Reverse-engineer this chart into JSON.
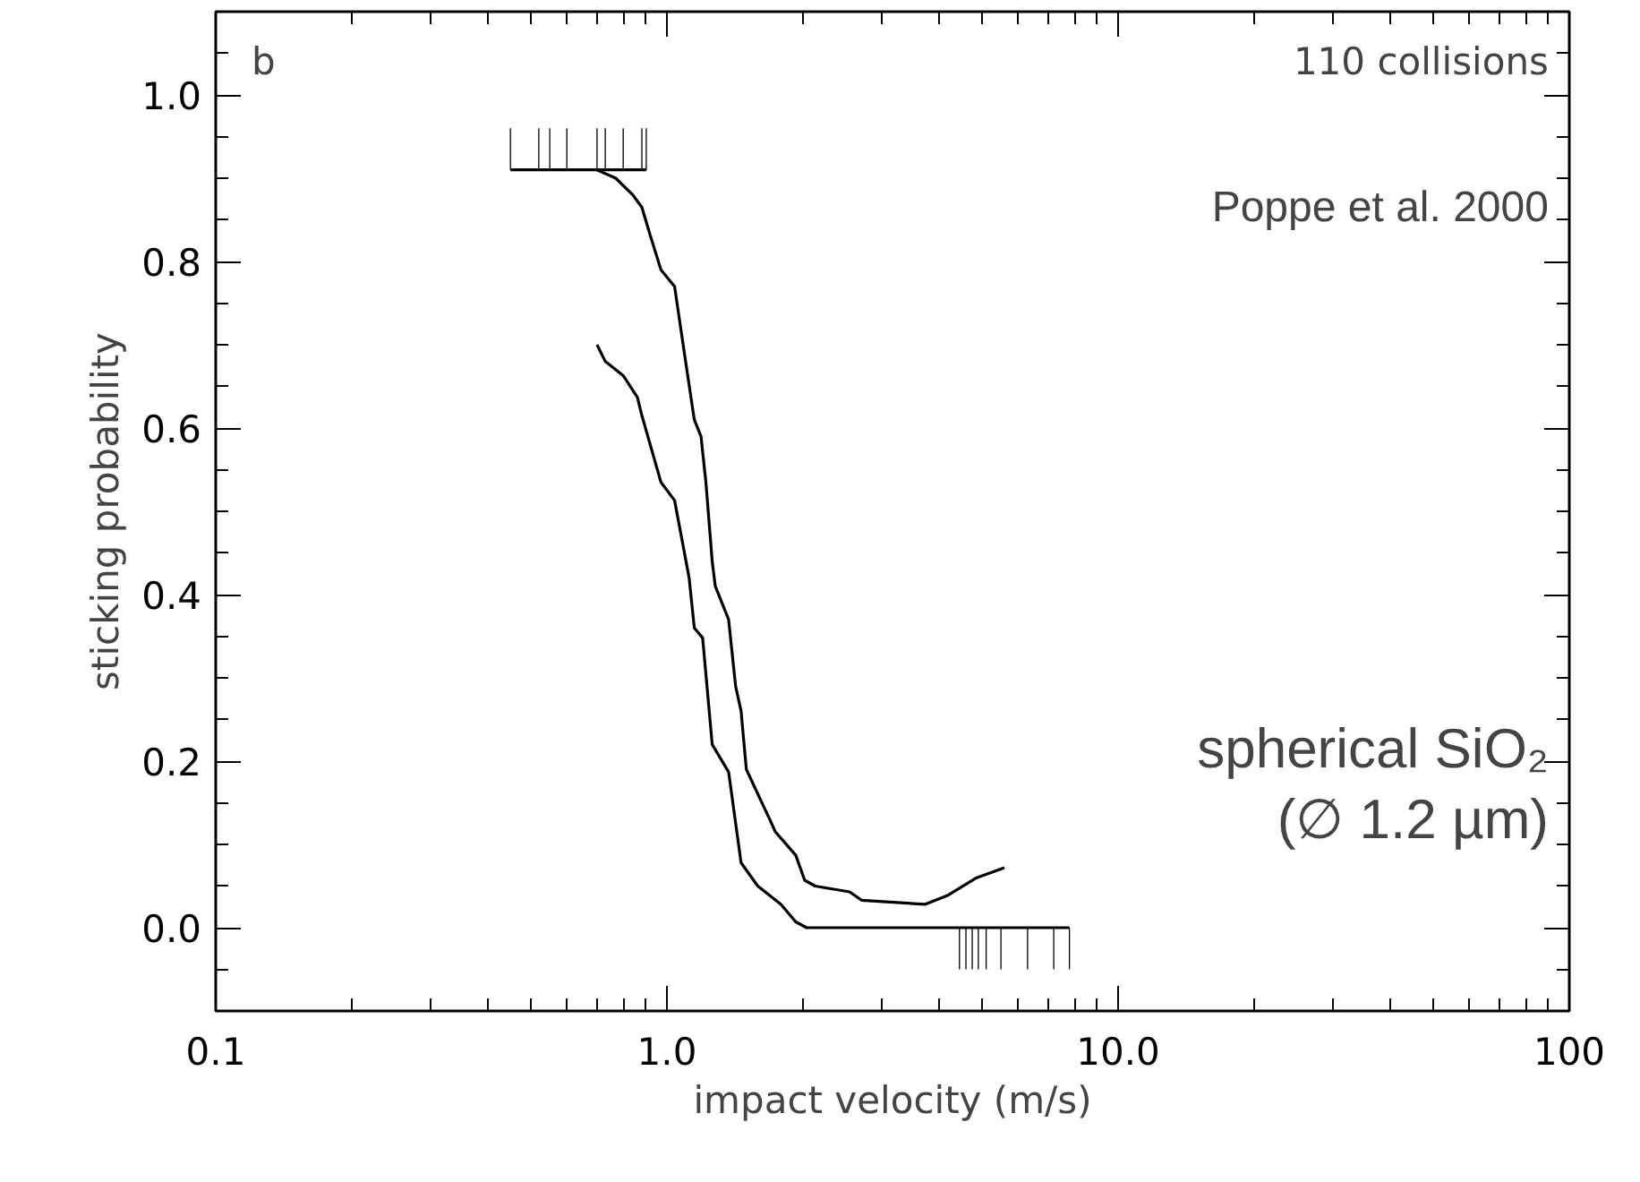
{
  "chart_data": {
    "type": "line",
    "xlabel": "impact velocity (m/s)",
    "ylabel": "sticking probability",
    "log": "x",
    "grid": false,
    "xlim": [
      0.1,
      100
    ],
    "ylim": [
      -0.1,
      1.1
    ],
    "xticks": [
      {
        "value": 0.1,
        "label": "0.1"
      },
      {
        "value": 1,
        "label": "1.0"
      },
      {
        "value": 10,
        "label": "10.0"
      },
      {
        "value": 100,
        "label": "100"
      }
    ],
    "yticks": [
      {
        "value": 0,
        "label": "0.0"
      },
      {
        "value": 0.2,
        "label": "0.2"
      },
      {
        "value": 0.4,
        "label": "0.4"
      },
      {
        "value": 0.6,
        "label": "0.6"
      },
      {
        "value": 0.8,
        "label": "0.8"
      },
      {
        "value": 1.0,
        "label": "1.0"
      }
    ],
    "annotations": [
      "b",
      "110 collisions",
      "Poppe et al. 2000",
      "spherical SiO₂",
      "(∅ 1.2 µm)"
    ],
    "series": [
      {
        "color": "#000000",
        "x": [
          0.7,
          0.77,
          0.84,
          0.88,
          0.92,
          0.97,
          1.04,
          1.1,
          1.15,
          1.19,
          1.22,
          1.26,
          1.28,
          1.37,
          1.42,
          1.46,
          1.5,
          1.69,
          1.74,
          1.93,
          2.02,
          2.13,
          2.54,
          2.7,
          3.73,
          4.2,
          4.86,
          5.6
        ],
        "values": [
          0.91,
          0.9,
          0.88,
          0.865,
          0.83,
          0.79,
          0.77,
          0.68,
          0.61,
          0.59,
          0.535,
          0.44,
          0.41,
          0.37,
          0.29,
          0.26,
          0.19,
          0.13,
          0.115,
          0.087,
          0.057,
          0.05,
          0.043,
          0.033,
          0.028,
          0.039,
          0.06,
          0.072
        ]
      },
      {
        "color": "#000000",
        "x": [
          0.7,
          0.73,
          0.8,
          0.86,
          0.88,
          0.97,
          1.04,
          1.12,
          1.15,
          1.2,
          1.26,
          1.37,
          1.46,
          1.59,
          1.79,
          1.93,
          2.04,
          7.8
        ],
        "values": [
          0.7,
          0.68,
          0.663,
          0.637,
          0.615,
          0.535,
          0.513,
          0.42,
          0.36,
          0.348,
          0.22,
          0.187,
          0.078,
          0.05,
          0.028,
          0.007,
          0.0,
          0.0
        ]
      },
      {
        "color": "#000000",
        "x": [
          0.45,
          0.9
        ],
        "values": [
          0.91,
          0.91
        ]
      },
      {
        "type": "bar",
        "color": "#000000",
        "x": [
          0.45,
          0.52,
          0.55,
          0.6,
          0.7,
          0.73,
          0.8,
          0.88,
          0.9
        ],
        "base": [
          0.91,
          0.91,
          0.91,
          0.91,
          0.91,
          0.91,
          0.91,
          0.91,
          0.91
        ],
        "values": [
          0.05,
          0.05,
          0.05,
          0.05,
          0.05,
          0.05,
          0.05,
          0.05,
          0.05
        ]
      },
      {
        "type": "bar",
        "color": "#000000",
        "x": [
          4.45,
          4.6,
          4.75,
          4.9,
          5.1,
          5.5,
          6.3,
          7.2,
          7.8
        ],
        "base": [
          0,
          0,
          0,
          0,
          0,
          0,
          0,
          0,
          0
        ],
        "values": [
          -0.05,
          -0.05,
          -0.05,
          -0.05,
          -0.05,
          -0.05,
          -0.05,
          -0.05,
          -0.05
        ]
      }
    ]
  }
}
